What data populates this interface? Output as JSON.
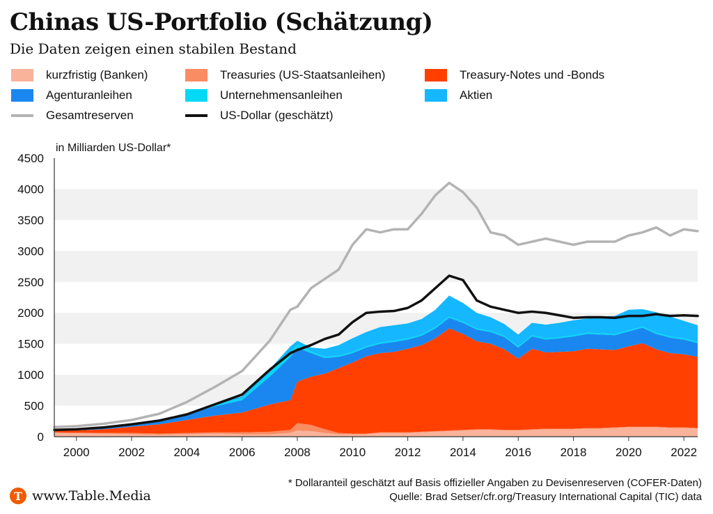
{
  "header": {
    "title": "Chinas US-Portfolio (Schätzung)",
    "subtitle": "Die Daten zeigen einen stabilen Bestand"
  },
  "legend": [
    {
      "label": "kurzfristig (Banken)",
      "color": "#f9b39a",
      "kind": "area"
    },
    {
      "label": "Treasuries (US-Staatsanleihen)",
      "color": "#f98c63",
      "kind": "area"
    },
    {
      "label": "Treasury-Notes und -Bonds",
      "color": "#ff4000",
      "kind": "area"
    },
    {
      "label": "Agenturanleihen",
      "color": "#1a87f0",
      "kind": "area"
    },
    {
      "label": "Unternehmensanleihen",
      "color": "#00d9f5",
      "kind": "area"
    },
    {
      "label": "Aktien",
      "color": "#15b7ff",
      "kind": "area"
    },
    {
      "label": "Gesamtreserven",
      "color": "#b3b3b3",
      "kind": "line"
    },
    {
      "label": "US-Dollar (geschätzt)",
      "color": "#111111",
      "kind": "line"
    }
  ],
  "chart_data": {
    "type": "area",
    "title": "Chinas US-Portfolio (Schätzung)",
    "ylabel": "in Milliarden US-Dollar*",
    "xlabel": "",
    "xlim": [
      1999.2,
      2022.5
    ],
    "ylim": [
      0,
      4500
    ],
    "y_ticks": [
      0,
      500,
      1000,
      1500,
      2000,
      2500,
      3000,
      3500,
      4000,
      4500
    ],
    "x_ticks": [
      2000,
      2002,
      2004,
      2006,
      2008,
      2010,
      2012,
      2014,
      2016,
      2018,
      2020,
      2022
    ],
    "x": [
      1999.2,
      2000,
      2001,
      2002,
      2003,
      2004,
      2005,
      2006,
      2007,
      2007.75,
      2008,
      2008.5,
      2009,
      2009.5,
      2010,
      2010.5,
      2011,
      2011.5,
      2012,
      2012.5,
      2013,
      2013.5,
      2014,
      2014.5,
      2015,
      2015.5,
      2016,
      2016.5,
      2017,
      2017.5,
      2018,
      2018.5,
      2019,
      2019.5,
      2020,
      2020.5,
      2021,
      2021.5,
      2022,
      2022.5
    ],
    "stack_order": [
      "kurzfristig (Banken)",
      "Treasuries (US-Staatsanleihen)",
      "Treasury-Notes und -Bonds",
      "Agenturanleihen",
      "Unternehmensanleihen",
      "Aktien"
    ],
    "series": [
      {
        "name": "kurzfristig (Banken)",
        "values": [
          60,
          55,
          50,
          40,
          30,
          40,
          50,
          40,
          40,
          60,
          100,
          90,
          60,
          40,
          40,
          40,
          60,
          60,
          60,
          70,
          80,
          90,
          100,
          110,
          110,
          100,
          100,
          110,
          120,
          120,
          120,
          130,
          130,
          140,
          150,
          150,
          150,
          140,
          140,
          130
        ]
      },
      {
        "name": "Treasuries (US-Staatsanleihen)",
        "values": [
          10,
          10,
          10,
          20,
          20,
          20,
          20,
          30,
          40,
          50,
          120,
          100,
          60,
          20,
          10,
          10,
          10,
          10,
          10,
          10,
          10,
          10,
          10,
          10,
          10,
          10,
          10,
          10,
          10,
          10,
          10,
          10,
          10,
          10,
          10,
          10,
          10,
          10,
          10,
          10
        ]
      },
      {
        "name": "Treasury-Notes und -Bonds",
        "values": [
          30,
          35,
          60,
          100,
          150,
          210,
          270,
          320,
          440,
          480,
          670,
          780,
          900,
          1050,
          1150,
          1250,
          1280,
          1300,
          1350,
          1400,
          1500,
          1650,
          1550,
          1420,
          1380,
          1300,
          1150,
          1300,
          1230,
          1240,
          1250,
          1280,
          1270,
          1250,
          1300,
          1350,
          1250,
          1200,
          1180,
          1150
        ]
      },
      {
        "name": "Agenturanleihen",
        "values": [
          10,
          15,
          20,
          40,
          60,
          90,
          150,
          200,
          450,
          700,
          550,
          380,
          250,
          180,
          150,
          140,
          150,
          160,
          150,
          150,
          160,
          170,
          180,
          190,
          190,
          200,
          180,
          200,
          210,
          220,
          240,
          240,
          240,
          240,
          240,
          250,
          250,
          250,
          240,
          220
        ]
      },
      {
        "name": "Unternehmensanleihen",
        "values": [
          0,
          0,
          0,
          0,
          0,
          10,
          20,
          30,
          60,
          80,
          50,
          30,
          20,
          20,
          20,
          20,
          20,
          20,
          20,
          20,
          20,
          20,
          20,
          20,
          20,
          20,
          20,
          20,
          20,
          20,
          20,
          20,
          20,
          20,
          20,
          20,
          20,
          20,
          20,
          20
        ]
      },
      {
        "name": "Aktien",
        "values": [
          0,
          0,
          0,
          0,
          5,
          10,
          20,
          30,
          60,
          90,
          60,
          60,
          130,
          170,
          220,
          230,
          250,
          250,
          240,
          250,
          280,
          340,
          300,
          250,
          220,
          190,
          190,
          200,
          220,
          230,
          240,
          230,
          270,
          290,
          330,
          280,
          330,
          320,
          280,
          270
        ]
      },
      {
        "name": "Gesamtreserven",
        "kind": "line",
        "values": [
          155,
          170,
          210,
          270,
          370,
          560,
          800,
          1060,
          1550,
          2050,
          2100,
          2400,
          2550,
          2700,
          3100,
          3350,
          3300,
          3350,
          3350,
          3600,
          3900,
          4100,
          3950,
          3700,
          3300,
          3250,
          3100,
          3150,
          3200,
          3150,
          3100,
          3150,
          3150,
          3150,
          3250,
          3300,
          3380,
          3250,
          3350,
          3320
        ]
      },
      {
        "name": "US-Dollar (geschätzt)",
        "kind": "line",
        "values": [
          110,
          120,
          150,
          200,
          260,
          360,
          520,
          680,
          1080,
          1350,
          1400,
          1480,
          1580,
          1650,
          1850,
          2000,
          2020,
          2030,
          2080,
          2200,
          2400,
          2600,
          2530,
          2200,
          2100,
          2050,
          2000,
          2020,
          2000,
          1960,
          1920,
          1930,
          1930,
          1920,
          1950,
          1950,
          1980,
          1950,
          1960,
          1950
        ]
      }
    ]
  },
  "footer": {
    "brand_logo_letter": "T",
    "brand": "www.Table.Media",
    "note": "* Dollaranteil geschätzt auf Basis offizieller Angaben zu Devisenreserven (COFER-Daten)",
    "source": "Quelle: Brad Setser/cfr.org/Treasury International Capital (TIC) data"
  }
}
